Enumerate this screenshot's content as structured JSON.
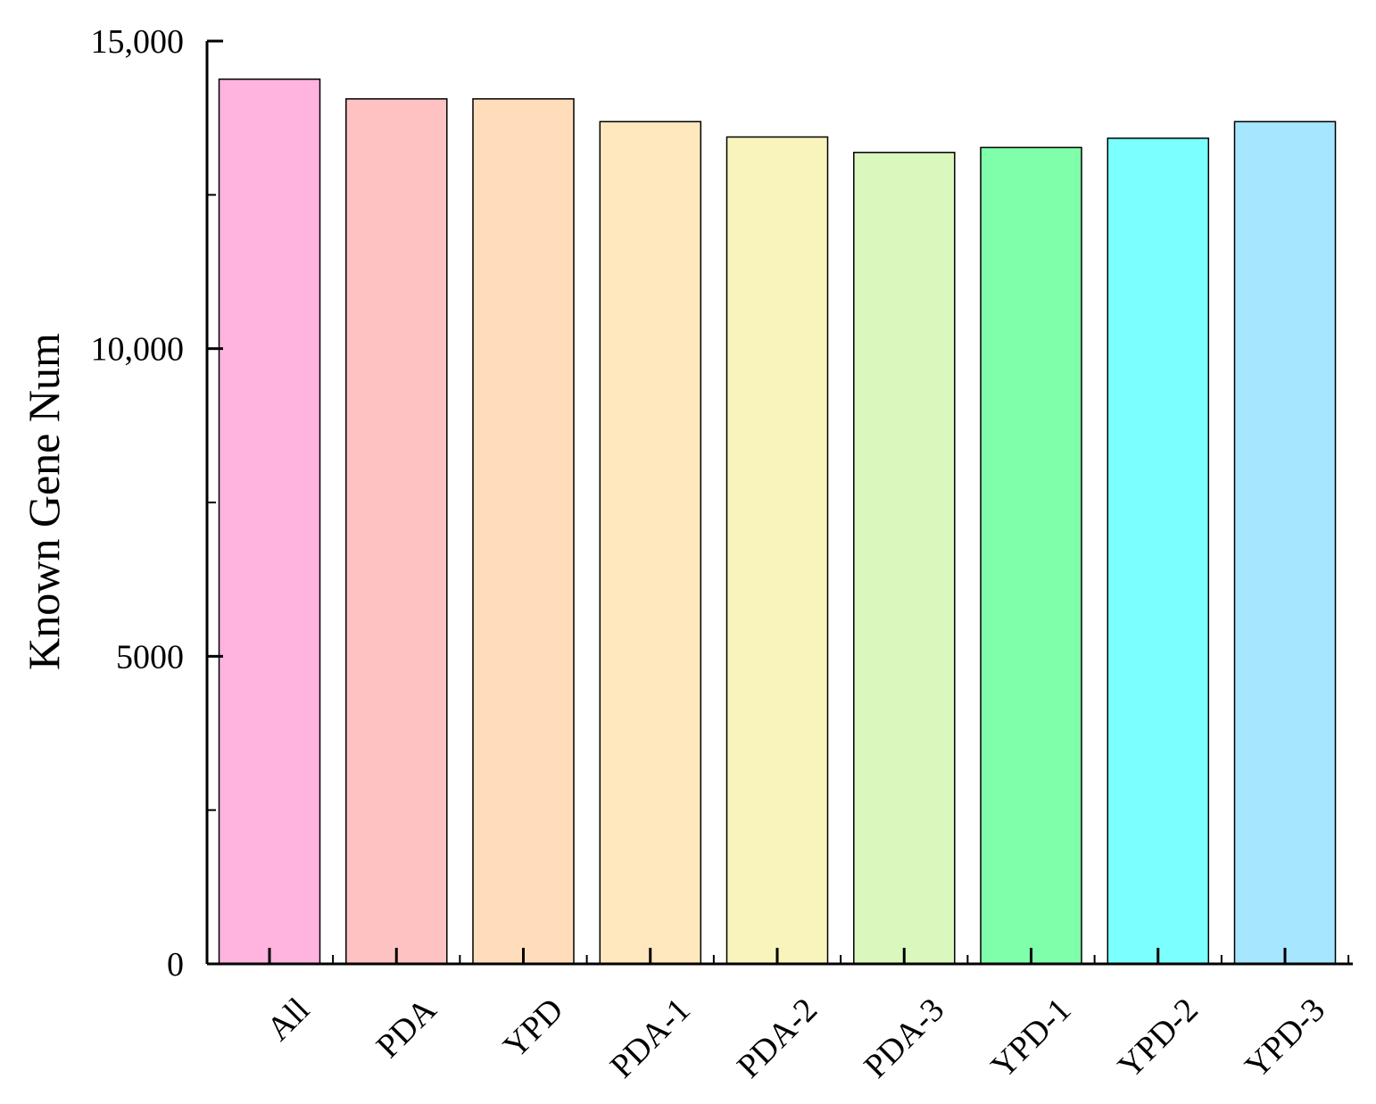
{
  "chart_data": {
    "type": "bar",
    "title": "",
    "xlabel": "",
    "ylabel": "Known Gene Num",
    "categories": [
      "All",
      "PDA",
      "YPD",
      "PDA-1",
      "PDA-2",
      "PDA-3",
      "YPD-1",
      "YPD-2",
      "YPD-3"
    ],
    "values": [
      14380,
      14060,
      14060,
      13690,
      13440,
      13190,
      13270,
      13420,
      13690
    ],
    "colors": [
      "#FFB3DF",
      "#FFC2C2",
      "#FFDDBB",
      "#FFE8BD",
      "#F8F4BC",
      "#DAF7BE",
      "#80FFAA",
      "#7BFFFF",
      "#A6E6FF"
    ],
    "ylim": [
      0,
      15000
    ],
    "yticks": [
      0,
      5000,
      10000,
      15000
    ],
    "ytick_labels": [
      "0",
      "5000",
      "10,000",
      "15,000"
    ],
    "grid": false,
    "legend": "none"
  }
}
